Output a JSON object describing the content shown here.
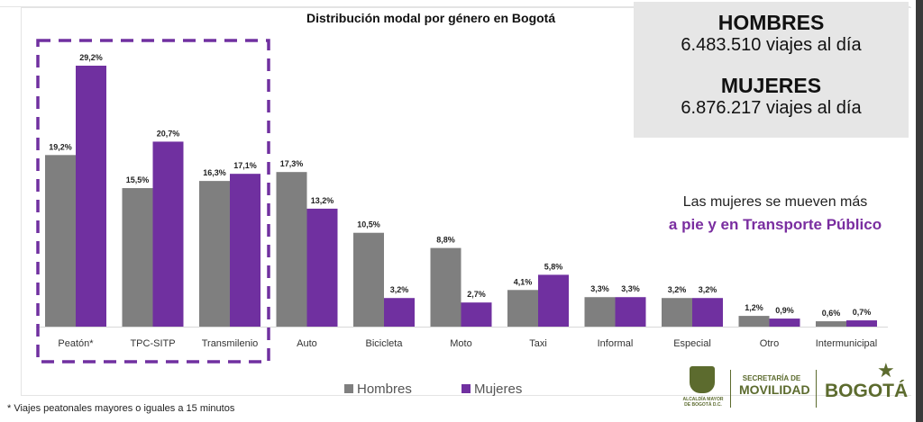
{
  "stats": {
    "men_header": "HOMBRES",
    "men_value": "6.483.510 viajes al día",
    "women_header": "MUJERES",
    "women_value": "6.876.217 viajes al día"
  },
  "annotation": {
    "line1": "Las mujeres se mueven más",
    "line2": "a pie y en Transporte Público"
  },
  "footnote": "* Viajes peatonales mayores o iguales a 15 minutos",
  "logos": {
    "crest_text": "ALCALDÍA MAYOR DE BOGOTÁ D.C.",
    "secretaria": "SECRETARÍA DE",
    "movilidad": "MOVILIDAD",
    "bogota": "BOGOTÁ"
  },
  "colors": {
    "hombres": "#7f7f7f",
    "mujeres": "#7030a0",
    "highlight_box": "#7030a0"
  },
  "chart_data": {
    "type": "bar",
    "title": "Distribución modal por género en Bogotá",
    "xlabel": "",
    "ylabel": "",
    "ylim": [
      0,
      30
    ],
    "grid": false,
    "legend_position": "bottom",
    "categories": [
      "Peatón*",
      "TPC-SITP",
      "Transmilenio",
      "Auto",
      "Bicicleta",
      "Moto",
      "Taxi",
      "Informal",
      "Especial",
      "Otro",
      "Intermunicipal"
    ],
    "series": [
      {
        "name": "Hombres",
        "values": [
          19.2,
          15.5,
          16.3,
          17.3,
          10.5,
          8.8,
          4.1,
          3.3,
          3.2,
          1.2,
          0.6
        ],
        "labels": [
          "19,2%",
          "15,5%",
          "16,3%",
          "17,3%",
          "10,5%",
          "8,8%",
          "4,1%",
          "3,3%",
          "3,2%",
          "1,2%",
          "0,6%"
        ]
      },
      {
        "name": "Mujeres",
        "values": [
          29.2,
          20.7,
          17.1,
          13.2,
          3.2,
          2.7,
          5.8,
          3.3,
          3.2,
          0.9,
          0.7
        ],
        "labels": [
          "29,2%",
          "20,7%",
          "17,1%",
          "13,2%",
          "3,2%",
          "2,7%",
          "5,8%",
          "3,3%",
          "3,2%",
          "0,9%",
          "0,7%"
        ]
      }
    ],
    "highlighted_categories": [
      "Peatón*",
      "TPC-SITP",
      "Transmilenio"
    ]
  }
}
